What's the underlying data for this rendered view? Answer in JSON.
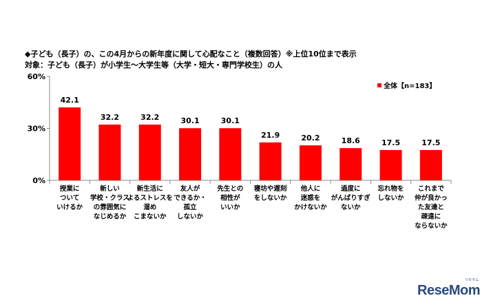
{
  "title": "◆子ども（長子）の、この4月からの新年度に関して心配なこと（複数回答）※上位10位まで表示",
  "subtitle": "対象：子ども（長子）が小学生～大学生等（大学・短大・専門学校生）の人",
  "logo": {
    "text": "ReseMom",
    "sub": "リセマム"
  },
  "chart_data": {
    "type": "bar",
    "categories": [
      "授業に\nついて\nいけるか",
      "新しい\n学校・クラス\nの雰囲気に\nなじめるか",
      "新生活に\nよるストレスを\n溜め\nこまないか",
      "友人が\nできるか・\n孤立\nしないか",
      "先生との\n相性が\nいいか",
      "寝坊や遅刻\nをしないか",
      "他人に\n迷惑を\nかけないか",
      "過度に\nがんばりすぎ\nないか",
      "忘れ物を\nしないか",
      "これまで\n仲が良かっ\nた友達と\n疎遠に\nならないか"
    ],
    "series": [
      {
        "name": "全体【n=183】",
        "values": [
          42.1,
          32.2,
          32.2,
          30.1,
          30.1,
          21.9,
          20.2,
          18.6,
          17.5,
          17.5
        ],
        "color": "#ff0000"
      }
    ],
    "ylim": [
      0,
      60
    ],
    "yticks": [
      "0%",
      "30%",
      "60%"
    ],
    "ytick_values": [
      0,
      30,
      60
    ],
    "legend_position": "top-right",
    "grid": false
  }
}
